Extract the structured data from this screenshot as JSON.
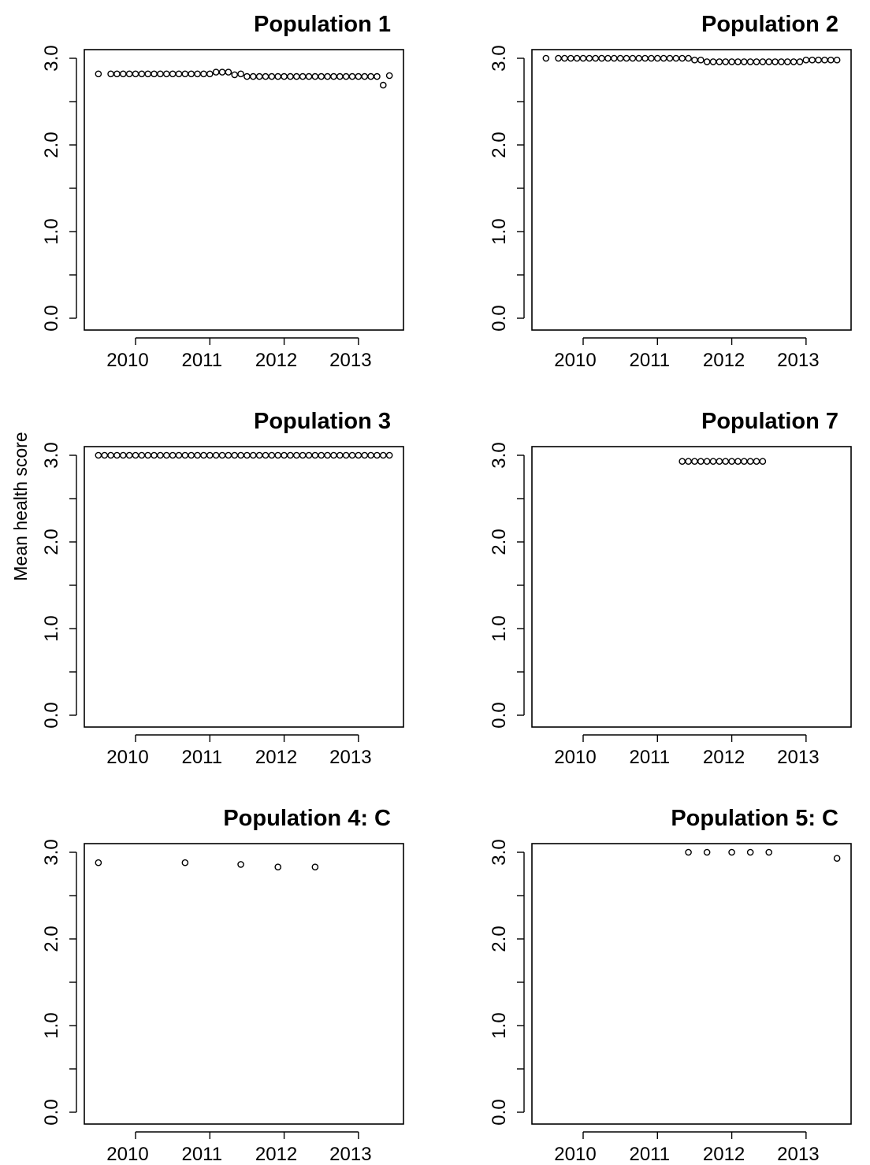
{
  "figure": {
    "ylabel": "Mean health score"
  },
  "chart_data": [
    {
      "type": "scatter",
      "title": "Population 1",
      "xlabel": "",
      "ylabel": "",
      "xlim": [
        "2009-06-01",
        "2013-07-01"
      ],
      "ylim": [
        0,
        3
      ],
      "xticks": [
        "2010",
        "2011",
        "2012",
        "2013"
      ],
      "yticks": [
        "0.0",
        "1.0",
        "2.0",
        "3.0"
      ],
      "series": [
        {
          "x": [
            "2009-07",
            "2009-09",
            "2009-10",
            "2009-11",
            "2009-12",
            "2010-01",
            "2010-02",
            "2010-03",
            "2010-04",
            "2010-05",
            "2010-06",
            "2010-07",
            "2010-08",
            "2010-09",
            "2010-10",
            "2010-11",
            "2010-12",
            "2011-01",
            "2011-02",
            "2011-03",
            "2011-04",
            "2011-05",
            "2011-06",
            "2011-07",
            "2011-08",
            "2011-09",
            "2011-10",
            "2011-11",
            "2011-12",
            "2012-01",
            "2012-02",
            "2012-03",
            "2012-04",
            "2012-05",
            "2012-06",
            "2012-07",
            "2012-08",
            "2012-09",
            "2012-10",
            "2012-11",
            "2012-12",
            "2013-01",
            "2013-02",
            "2013-03",
            "2013-04",
            "2013-05",
            "2013-06"
          ],
          "y": [
            2.82,
            2.82,
            2.82,
            2.82,
            2.82,
            2.82,
            2.82,
            2.82,
            2.82,
            2.82,
            2.82,
            2.82,
            2.82,
            2.82,
            2.82,
            2.82,
            2.82,
            2.82,
            2.84,
            2.84,
            2.84,
            2.81,
            2.82,
            2.79,
            2.79,
            2.79,
            2.79,
            2.79,
            2.79,
            2.79,
            2.79,
            2.79,
            2.79,
            2.79,
            2.79,
            2.79,
            2.79,
            2.79,
            2.79,
            2.79,
            2.79,
            2.79,
            2.79,
            2.79,
            2.79,
            2.69,
            2.8
          ]
        }
      ]
    },
    {
      "type": "scatter",
      "title": "Population 2",
      "xlabel": "",
      "ylabel": "",
      "xlim": [
        "2009-06-01",
        "2013-07-01"
      ],
      "ylim": [
        0,
        3
      ],
      "xticks": [
        "2010",
        "2011",
        "2012",
        "2013"
      ],
      "yticks": [
        "0.0",
        "1.0",
        "2.0",
        "3.0"
      ],
      "series": [
        {
          "x": [
            "2009-07",
            "2009-09",
            "2009-10",
            "2009-11",
            "2009-12",
            "2010-01",
            "2010-02",
            "2010-03",
            "2010-04",
            "2010-05",
            "2010-06",
            "2010-07",
            "2010-08",
            "2010-09",
            "2010-10",
            "2010-11",
            "2010-12",
            "2011-01",
            "2011-02",
            "2011-03",
            "2011-04",
            "2011-05",
            "2011-06",
            "2011-07",
            "2011-08",
            "2011-09",
            "2011-10",
            "2011-11",
            "2011-12",
            "2012-01",
            "2012-02",
            "2012-03",
            "2012-04",
            "2012-05",
            "2012-06",
            "2012-07",
            "2012-08",
            "2012-09",
            "2012-10",
            "2012-11",
            "2012-12",
            "2013-01",
            "2013-02",
            "2013-03",
            "2013-04",
            "2013-05",
            "2013-06"
          ],
          "y": [
            3.0,
            3.0,
            3.0,
            3.0,
            3.0,
            3.0,
            3.0,
            3.0,
            3.0,
            3.0,
            3.0,
            3.0,
            3.0,
            3.0,
            3.0,
            3.0,
            3.0,
            3.0,
            3.0,
            3.0,
            3.0,
            3.0,
            3.0,
            2.98,
            2.98,
            2.96,
            2.96,
            2.96,
            2.96,
            2.96,
            2.96,
            2.96,
            2.96,
            2.96,
            2.96,
            2.96,
            2.96,
            2.96,
            2.96,
            2.96,
            2.96,
            2.98,
            2.98,
            2.98,
            2.98,
            2.98,
            2.98
          ]
        }
      ]
    },
    {
      "type": "scatter",
      "title": "Population 3",
      "xlabel": "",
      "ylabel": "",
      "xlim": [
        "2009-06-01",
        "2013-07-01"
      ],
      "ylim": [
        0,
        3
      ],
      "xticks": [
        "2010",
        "2011",
        "2012",
        "2013"
      ],
      "yticks": [
        "0.0",
        "1.0",
        "2.0",
        "3.0"
      ],
      "series": [
        {
          "x": [
            "2009-07",
            "2009-08",
            "2009-09",
            "2009-10",
            "2009-11",
            "2009-12",
            "2010-01",
            "2010-02",
            "2010-03",
            "2010-04",
            "2010-05",
            "2010-06",
            "2010-07",
            "2010-08",
            "2010-09",
            "2010-10",
            "2010-11",
            "2010-12",
            "2011-01",
            "2011-02",
            "2011-03",
            "2011-04",
            "2011-05",
            "2011-06",
            "2011-07",
            "2011-08",
            "2011-09",
            "2011-10",
            "2011-11",
            "2011-12",
            "2012-01",
            "2012-02",
            "2012-03",
            "2012-04",
            "2012-05",
            "2012-06",
            "2012-07",
            "2012-08",
            "2012-09",
            "2012-10",
            "2012-11",
            "2012-12",
            "2013-01",
            "2013-02",
            "2013-03",
            "2013-04",
            "2013-05",
            "2013-06"
          ],
          "y": [
            3.0,
            3.0,
            3.0,
            3.0,
            3.0,
            3.0,
            3.0,
            3.0,
            3.0,
            3.0,
            3.0,
            3.0,
            3.0,
            3.0,
            3.0,
            3.0,
            3.0,
            3.0,
            3.0,
            3.0,
            3.0,
            3.0,
            3.0,
            3.0,
            3.0,
            3.0,
            3.0,
            3.0,
            3.0,
            3.0,
            3.0,
            3.0,
            3.0,
            3.0,
            3.0,
            3.0,
            3.0,
            3.0,
            3.0,
            3.0,
            3.0,
            3.0,
            3.0,
            3.0,
            3.0,
            3.0,
            3.0,
            3.0
          ]
        }
      ]
    },
    {
      "type": "scatter",
      "title": "Population 7",
      "xlabel": "",
      "ylabel": "",
      "xlim": [
        "2009-06-01",
        "2013-07-01"
      ],
      "ylim": [
        0,
        3
      ],
      "xticks": [
        "2010",
        "2011",
        "2012",
        "2013"
      ],
      "yticks": [
        "0.0",
        "1.0",
        "2.0",
        "3.0"
      ],
      "series": [
        {
          "x": [
            "2011-05",
            "2011-06",
            "2011-07",
            "2011-08",
            "2011-09",
            "2011-10",
            "2011-11",
            "2011-12",
            "2012-01",
            "2012-02",
            "2012-03",
            "2012-04",
            "2012-05",
            "2012-06"
          ],
          "y": [
            2.93,
            2.93,
            2.93,
            2.93,
            2.93,
            2.93,
            2.93,
            2.93,
            2.93,
            2.93,
            2.93,
            2.93,
            2.93,
            2.93
          ]
        }
      ]
    },
    {
      "type": "scatter",
      "title": "Population 4: C",
      "xlabel": "",
      "ylabel": "",
      "xlim": [
        "2009-06-01",
        "2013-07-01"
      ],
      "ylim": [
        0,
        3
      ],
      "xticks": [
        "2010",
        "2011",
        "2012",
        "2013"
      ],
      "yticks": [
        "0.0",
        "1.0",
        "2.0",
        "3.0"
      ],
      "series": [
        {
          "x": [
            "2009-07",
            "2010-09",
            "2011-06",
            "2011-12",
            "2012-06"
          ],
          "y": [
            2.88,
            2.88,
            2.86,
            2.83,
            2.83
          ]
        }
      ]
    },
    {
      "type": "scatter",
      "title": "Population 5: C",
      "xlabel": "",
      "ylabel": "",
      "xlim": [
        "2009-06-01",
        "2013-07-01"
      ],
      "ylim": [
        0,
        3
      ],
      "xticks": [
        "2010",
        "2011",
        "2012",
        "2013"
      ],
      "yticks": [
        "0.0",
        "1.0",
        "2.0",
        "3.0"
      ],
      "series": [
        {
          "x": [
            "2011-06",
            "2011-09",
            "2012-01",
            "2012-04",
            "2012-07",
            "2013-06"
          ],
          "y": [
            3.0,
            3.0,
            3.0,
            3.0,
            3.0,
            2.93
          ]
        }
      ]
    }
  ]
}
